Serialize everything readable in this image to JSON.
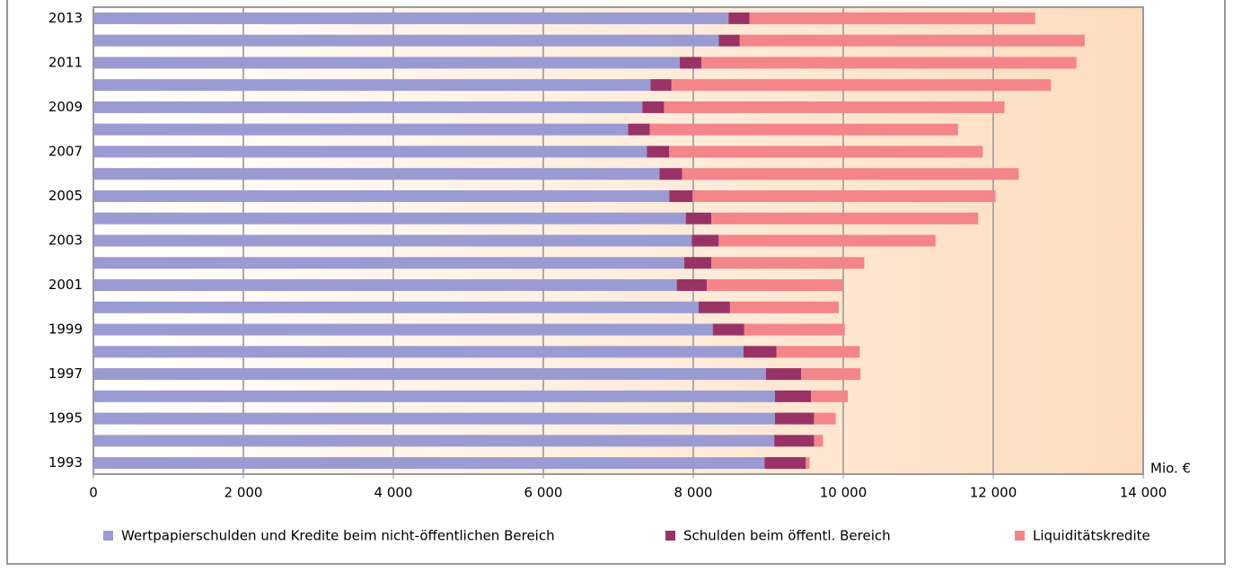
{
  "chart_data": {
    "type": "stacked_barh",
    "categories": [
      "1993",
      null,
      "1995",
      null,
      "1997",
      null,
      "1999",
      null,
      "2001",
      null,
      "2003",
      null,
      "2005",
      null,
      "2007",
      null,
      "2009",
      null,
      "2011",
      null,
      "2013"
    ],
    "series": [
      {
        "name": "Wertpapierschulden und Kredite beim nicht-öffentlichen Bereich",
        "color": "#9b9bd3",
        "values": [
          8950,
          9080,
          9090,
          9090,
          8970,
          8670,
          8260,
          8070,
          7780,
          7880,
          7980,
          7900,
          7680,
          7550,
          7380,
          7130,
          7320,
          7430,
          7820,
          8340,
          8470
        ]
      },
      {
        "name": "Schulden beim öffentl. Bereich",
        "color": "#993366",
        "values": [
          550,
          530,
          520,
          480,
          470,
          440,
          420,
          420,
          400,
          360,
          360,
          340,
          310,
          300,
          300,
          290,
          290,
          280,
          290,
          280,
          280
        ]
      },
      {
        "name": "Liquiditätskredite",
        "color": "#f4858a",
        "values": [
          50,
          120,
          290,
          490,
          790,
          1110,
          1340,
          1450,
          1810,
          2040,
          2890,
          3560,
          4040,
          4490,
          4180,
          4110,
          4540,
          5060,
          5000,
          4600,
          3810
        ]
      }
    ],
    "x_axis_label": "Mio. €",
    "xlim": [
      0,
      14000
    ],
    "xticks": [
      0,
      {
        "value": 2000,
        "label": "2 000"
      },
      {
        "value": 4000,
        "label": "4 000"
      },
      {
        "value": 6000,
        "label": "6 000"
      },
      {
        "value": 8000,
        "label": "8 000"
      },
      {
        "value": 10000,
        "label": "10 000"
      },
      {
        "value": 12000,
        "label": "12 000"
      },
      {
        "value": 14000,
        "label": "14 000"
      }
    ],
    "grid": true,
    "legend": "bottom"
  }
}
